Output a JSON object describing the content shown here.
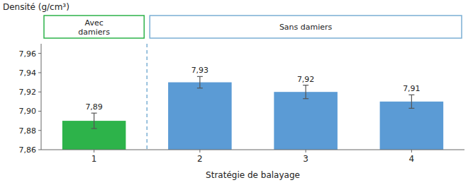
{
  "chart_data": {
    "type": "bar",
    "categories": [
      "1",
      "2",
      "3",
      "4"
    ],
    "values": [
      7.89,
      7.93,
      7.92,
      7.91
    ],
    "errors": [
      0.008,
      0.006,
      0.007,
      0.007
    ],
    "value_labels": [
      "7,89",
      "7,93",
      "7,92",
      "7,91"
    ],
    "data_labels": true,
    "colors": [
      "#2db34a",
      "#5b9bd5",
      "#5b9bd5",
      "#5b9bd5"
    ],
    "ylabel": "Densité (g/cm³)",
    "xlabel": "Stratégie de balayage",
    "ylim": [
      7.86,
      7.97
    ],
    "yticks": [
      {
        "value": 7.86,
        "label": "7,86"
      },
      {
        "value": 7.88,
        "label": "7,88"
      },
      {
        "value": 7.9,
        "label": "7,90"
      },
      {
        "value": 7.92,
        "label": "7,92"
      },
      {
        "value": 7.94,
        "label": "7,94"
      },
      {
        "value": 7.96,
        "label": "7,96"
      }
    ],
    "annotations": [
      {
        "text": "Avec\ndamiers",
        "color": "#2db34a"
      },
      {
        "text": "Sans damiers",
        "color": "#7bafd4"
      }
    ]
  }
}
